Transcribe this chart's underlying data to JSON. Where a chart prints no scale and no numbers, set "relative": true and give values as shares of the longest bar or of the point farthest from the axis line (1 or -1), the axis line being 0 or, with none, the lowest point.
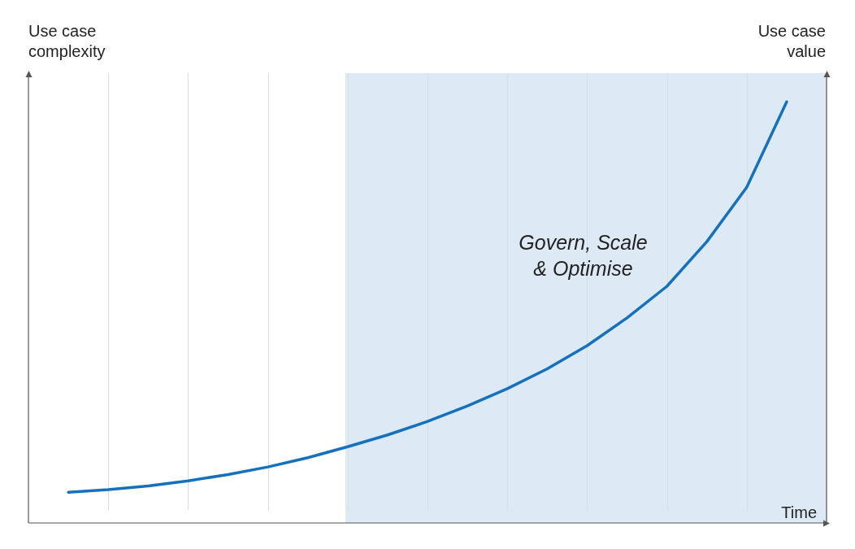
{
  "chart_data": {
    "type": "line",
    "xlabel": "Time",
    "ylabel": "Use case complexity",
    "y2label": "Use case value",
    "relative": true,
    "tick_labels": false,
    "grid": "x",
    "categories": [
      null,
      null,
      null,
      null,
      null,
      null,
      null,
      null,
      null,
      null,
      null,
      null,
      null,
      null,
      null,
      null,
      null,
      null,
      null,
      null,
      null
    ],
    "series": [
      {
        "color": "#1570bd",
        "values": [
          null,
          0.073,
          0.079,
          0.088,
          0.1,
          0.115,
          0.133,
          0.155,
          0.181,
          0.209,
          0.241,
          0.278,
          0.319,
          0.366,
          0.421,
          0.487,
          0.562,
          0.668,
          0.797,
          1.0,
          null
        ]
      }
    ],
    "annotations": [
      "Govern, Scale & Optimise"
    ]
  }
}
